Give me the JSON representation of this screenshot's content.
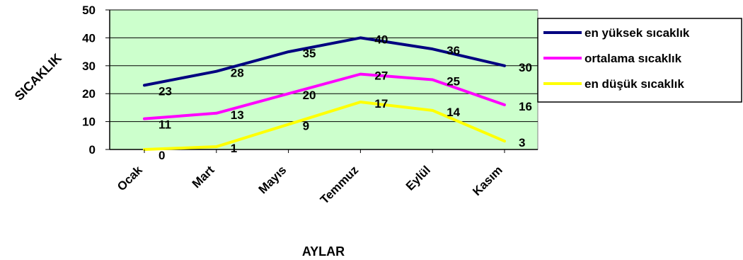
{
  "chart_data": {
    "type": "line",
    "categories": [
      "Ocak",
      "Mart",
      "Mayıs",
      "Temmuz",
      "Eylül",
      "Kasım"
    ],
    "series": [
      {
        "name": "en yüksek sıcaklık",
        "values": [
          23,
          28,
          35,
          40,
          36,
          30
        ],
        "color": "#000080"
      },
      {
        "name": "ortalama sıcaklık",
        "values": [
          11,
          13,
          20,
          27,
          25,
          16
        ],
        "color": "#ff00ff"
      },
      {
        "name": "en düşük sıcaklık",
        "values": [
          0,
          1,
          9,
          17,
          14,
          3
        ],
        "color": "#ffff00"
      }
    ],
    "xlabel": "AYLAR",
    "ylabel": "SICAKLIK",
    "ylim": [
      0,
      50
    ],
    "yticks": [
      0,
      10,
      20,
      30,
      40,
      50
    ],
    "grid": true,
    "plot_background": "#ccffcc",
    "legend_position": "right"
  }
}
